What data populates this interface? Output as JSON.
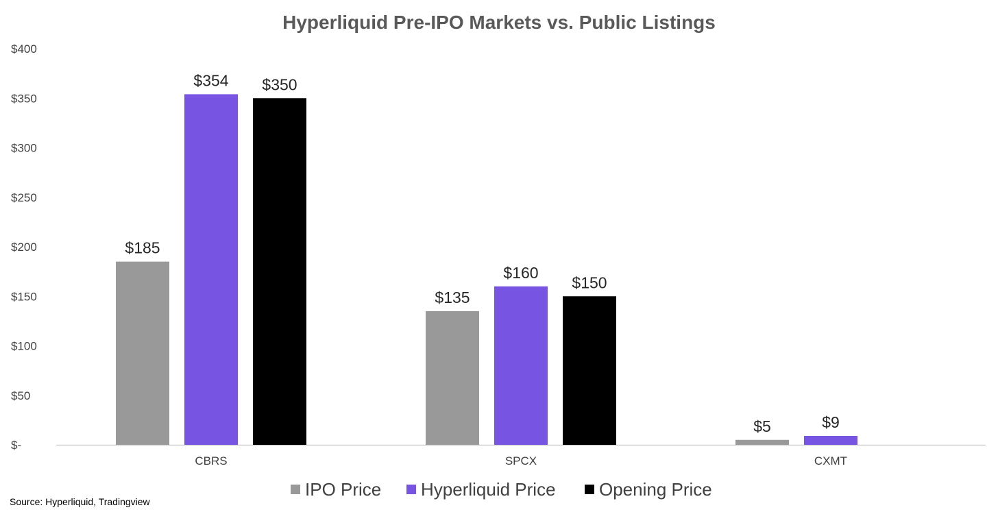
{
  "chart_data": {
    "type": "bar",
    "title": "Hyperliquid Pre-IPO Markets vs. Public Listings",
    "xlabel": "",
    "ylabel": "",
    "categories": [
      "CBRS",
      "SPCX",
      "CXMT"
    ],
    "series": [
      {
        "name": "IPO Price",
        "color": "#999999",
        "values": [
          185,
          135,
          5
        ],
        "labels": [
          "$185",
          "$135",
          "$5"
        ]
      },
      {
        "name": "Hyperliquid Price",
        "color": "#7755E2",
        "values": [
          354,
          160,
          9
        ],
        "labels": [
          "$354",
          "$160",
          "$9"
        ]
      },
      {
        "name": "Opening Price",
        "color": "#000000",
        "values": [
          350,
          150,
          null
        ],
        "labels": [
          "$350",
          "$150",
          null
        ]
      }
    ],
    "ylim": [
      0,
      400
    ],
    "yticks": [
      0,
      50,
      100,
      150,
      200,
      250,
      300,
      350,
      400
    ],
    "ytick_labels": [
      "$-",
      "$50",
      "$100",
      "$150",
      "$200",
      "$250",
      "$300",
      "$350",
      "$400"
    ],
    "grid": false,
    "legend_position": "bottom",
    "source": "Source: Hyperliquid, Tradingview"
  }
}
